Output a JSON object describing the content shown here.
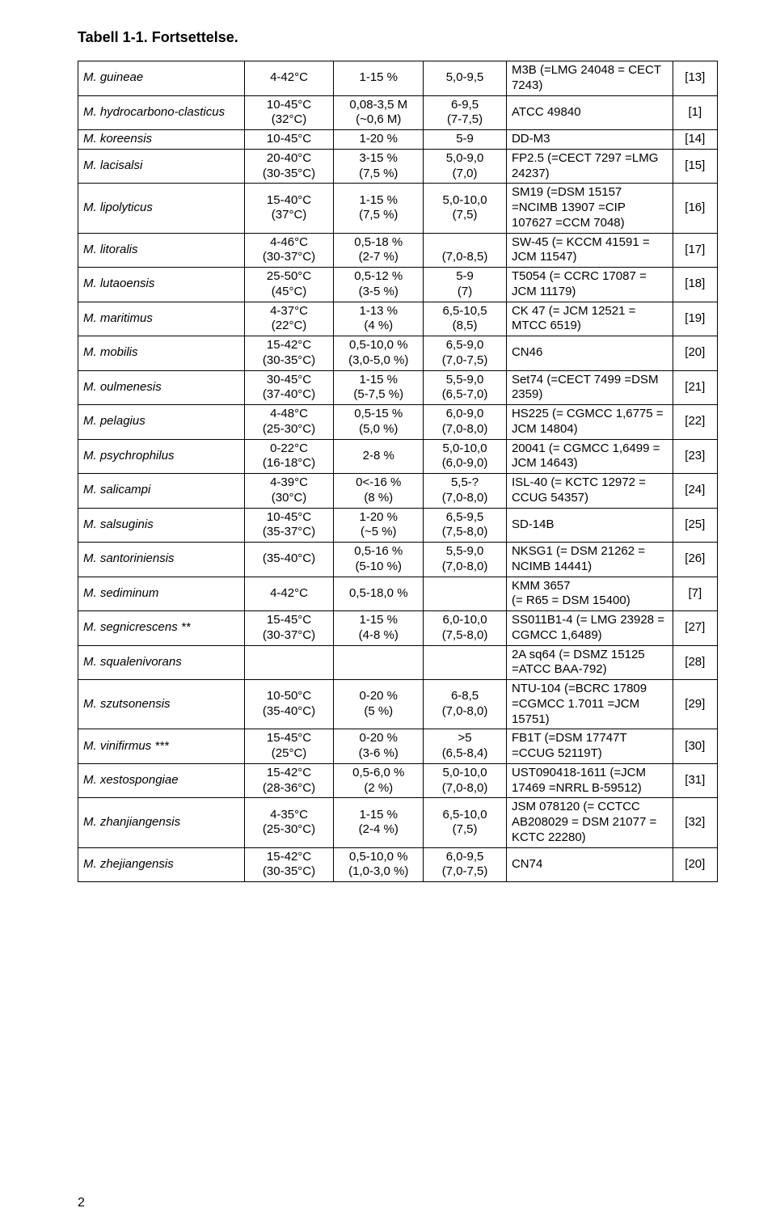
{
  "title": "Tabell 1-1. Fortsettelse.",
  "page_number": "2",
  "rows": [
    {
      "species": "M. guineae",
      "temp": "4-42°C",
      "nacl": "1-15 %",
      "ph": "5,0-9,5",
      "strain": "M3B (=LMG 24048 = CECT 7243)",
      "ref": "[13]"
    },
    {
      "species": "M. hydrocarbono-clasticus",
      "temp": "10-45°C\n(32°C)",
      "nacl": "0,08-3,5 M\n(~0,6 M)",
      "ph": "6-9,5\n(7-7,5)",
      "strain": "ATCC 49840",
      "ref": "[1]"
    },
    {
      "species": "M. koreensis",
      "temp": "10-45°C",
      "nacl": "1-20 %",
      "ph": "5-9",
      "strain": "DD-M3",
      "ref": "[14]"
    },
    {
      "species": "M. lacisalsi",
      "temp": "20-40°C\n(30-35°C)",
      "nacl": "3-15 %\n(7,5 %)",
      "ph": "5,0-9,0\n(7,0)",
      "strain": "FP2.5 (=CECT 7297 =LMG 24237)",
      "ref": "[15]"
    },
    {
      "species": "M. lipolyticus",
      "temp": "15-40°C\n(37°C)",
      "nacl": "1-15 %\n(7,5 %)",
      "ph": "5,0-10,0\n(7,5)",
      "strain": "SM19 (=DSM 15157 =NCIMB 13907 =CIP 107627 =CCM 7048)",
      "ref": "[16]"
    },
    {
      "species": "M. litoralis",
      "temp": "4-46°C\n(30-37°C)",
      "nacl": "0,5-18 %\n(2-7 %)",
      "ph": "\n(7,0-8,5)",
      "strain": "SW-45 (= KCCM 41591 = JCM 11547)",
      "ref": "[17]"
    },
    {
      "species": "M. lutaoensis",
      "temp": "25-50°C\n(45°C)",
      "nacl": "0,5-12 %\n(3-5 %)",
      "ph": "5-9\n(7)",
      "strain": "T5054 (= CCRC 17087 = JCM 11179)",
      "ref": "[18]"
    },
    {
      "species": "M. maritimus",
      "temp": "4-37°C\n(22°C)",
      "nacl": "1-13 %\n(4 %)",
      "ph": "6,5-10,5\n(8,5)",
      "strain": "CK 47 (= JCM 12521 = MTCC 6519)",
      "ref": "[19]"
    },
    {
      "species": "M. mobilis",
      "temp": "15-42°C\n(30-35°C)",
      "nacl": "0,5-10,0 %\n(3,0-5,0 %)",
      "ph": "6,5-9,0\n(7,0-7,5)",
      "strain": "CN46",
      "ref": "[20]"
    },
    {
      "species": "M. oulmenesis",
      "temp": "30-45°C\n(37-40°C)",
      "nacl": "1-15 %\n(5-7,5 %)",
      "ph": "5,5-9,0\n(6,5-7,0)",
      "strain": "Set74 (=CECT 7499 =DSM 2359)",
      "ref": "[21]"
    },
    {
      "species": "M. pelagius",
      "temp": "4-48°C\n(25-30°C)",
      "nacl": "0,5-15 %\n(5,0 %)",
      "ph": "6,0-9,0\n(7,0-8,0)",
      "strain": "HS225 (= CGMCC 1,6775 = JCM 14804)",
      "ref": "[22]"
    },
    {
      "species": "M. psychrophilus",
      "temp": "0-22°C\n(16-18°C)",
      "nacl": "2-8 %",
      "ph": "5,0-10,0\n(6,0-9,0)",
      "strain": "20041 (= CGMCC 1,6499 = JCM 14643)",
      "ref": "[23]"
    },
    {
      "species": "M. salicampi",
      "temp": "4-39°C\n(30°C)",
      "nacl": "0<-16 %\n(8 %)",
      "ph": "5,5-?\n(7,0-8,0)",
      "strain": "ISL-40 (= KCTC 12972 = CCUG 54357)",
      "ref": "[24]"
    },
    {
      "species": "M. salsuginis",
      "temp": "10-45°C\n(35-37°C)",
      "nacl": "1-20 %\n(~5 %)",
      "ph": "6,5-9,5\n(7,5-8,0)",
      "strain": "SD-14B",
      "ref": "[25]"
    },
    {
      "species": "M. santoriniensis",
      "temp": "(35-40°C)",
      "nacl": "0,5-16 %\n(5-10 %)",
      "ph": "5,5-9,0\n(7,0-8,0)",
      "strain": "NKSG1 (= DSM 21262 = NCIMB 14441)",
      "ref": "[26]"
    },
    {
      "species": "M. sediminum",
      "temp": "4-42°C",
      "nacl": "0,5-18,0 %",
      "ph": "",
      "strain": "KMM 3657\n(= R65 = DSM 15400)",
      "ref": "[7]"
    },
    {
      "species": "M. segnicrescens **",
      "temp": "15-45°C\n(30-37°C)",
      "nacl": "1-15 %\n(4-8 %)",
      "ph": "6,0-10,0\n(7,5-8,0)",
      "strain": "SS011B1-4 (= LMG 23928 = CGMCC 1,6489)",
      "ref": "[27]"
    },
    {
      "species": "M. squalenivorans",
      "temp": "",
      "nacl": "",
      "ph": "",
      "strain": "2A sq64 (= DSMZ 15125 =ATCC BAA-792)",
      "ref": "[28]"
    },
    {
      "species": "M. szutsonensis",
      "temp": "10-50°C\n(35-40°C)",
      "nacl": "0-20 %\n(5 %)",
      "ph": "6-8,5\n(7,0-8,0)",
      "strain": "NTU-104 (=BCRC 17809 =CGMCC 1.7011 =JCM 15751)",
      "ref": "[29]"
    },
    {
      "species": "M. vinifirmus ***",
      "temp": "15-45°C\n(25°C)",
      "nacl": "0-20 %\n(3-6 %)",
      "ph": ">5\n(6,5-8,4)",
      "strain": "FB1T (=DSM 17747T =CCUG 52119T)",
      "ref": "[30]"
    },
    {
      "species": "M. xestospongiae",
      "temp": "15-42°C\n(28-36°C)",
      "nacl": "0,5-6,0 %\n(2 %)",
      "ph": "5,0-10,0\n(7,0-8,0)",
      "strain": "UST090418-1611  (=JCM 17469 =NRRL B-59512)",
      "ref": "[31]"
    },
    {
      "species": "M. zhanjiangensis",
      "temp": "4-35°C\n(25-30°C)",
      "nacl": "1-15 %\n(2-4 %)",
      "ph": "6,5-10,0\n(7,5)",
      "strain": "JSM 078120 (= CCTCC AB208029 = DSM 21077 = KCTC 22280)",
      "ref": "[32]"
    },
    {
      "species": "M. zhejiangensis",
      "temp": "15-42°C\n(30-35°C)",
      "nacl": "0,5-10,0 %\n(1,0-3,0 %)",
      "ph": "6,0-9,5\n(7,0-7,5)",
      "strain": "CN74",
      "ref": "[20]"
    }
  ]
}
